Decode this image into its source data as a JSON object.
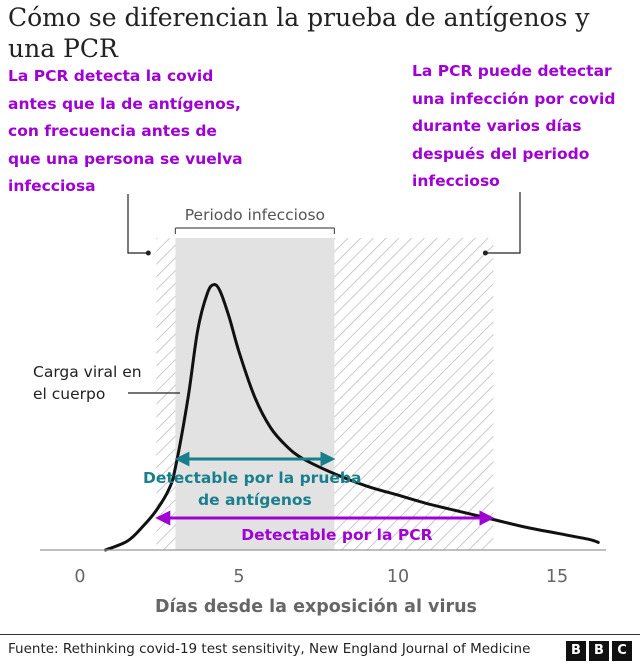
{
  "title": "Cómo se diferencian la prueba de antígenos y una PCR",
  "annotations": {
    "left": "La PCR detecta la covid antes que la de antígenos, con frecuencia antes de que una persona se vuelva infecciosa",
    "right": "La PCR puede detectar una infección por covid durante varios días después del periodo infeccioso"
  },
  "source": "Fuente: Rethinking covid-19 test sensitivity, New England Journal of Medicine",
  "logo": [
    "B",
    "B",
    "C"
  ],
  "colors": {
    "accent": "#a000d4",
    "teal": "#1a7f8c",
    "shade": "#e2e2e2",
    "hatch": "#b5b5b5",
    "curve": "#111111"
  },
  "chart_data": {
    "type": "line",
    "xlabel": "Días desde la exposición al virus",
    "ylabel": "",
    "xlim": [
      0,
      16.5
    ],
    "xticks": [
      0,
      5,
      10,
      15
    ],
    "grid": false,
    "infectious_period": {
      "label": "Periodo infeccioso",
      "start": 3,
      "end": 8
    },
    "pcr_window": {
      "start": 2.4,
      "end": 13
    },
    "series": [
      {
        "name": "Carga viral en el cuerpo",
        "x": [
          0.8,
          1.5,
          2,
          2.4,
          2.8,
          3,
          3.4,
          3.7,
          4,
          4.2,
          4.4,
          4.7,
          5,
          5.5,
          6,
          6.5,
          7,
          8,
          9,
          10,
          11,
          12,
          13,
          14,
          15,
          16,
          16.3
        ],
        "y": [
          0,
          3,
          8,
          13,
          20,
          27,
          50,
          72,
          84,
          87,
          85,
          76,
          65,
          50,
          40,
          34,
          30,
          25,
          21,
          18,
          15,
          12.5,
          10,
          7.5,
          5.5,
          3.5,
          2.5
        ]
      }
    ],
    "ranges": [
      {
        "name": "Detectable por la prueba de antígenos",
        "start": 3,
        "end": 8
      },
      {
        "name": "Detectable por la PCR",
        "start": 2.4,
        "end": 13
      }
    ]
  }
}
